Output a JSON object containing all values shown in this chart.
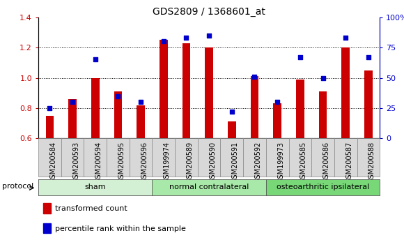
{
  "title": "GDS2809 / 1368601_at",
  "samples": [
    "GSM200584",
    "GSM200593",
    "GSM200594",
    "GSM200595",
    "GSM200596",
    "GSM199974",
    "GSM200589",
    "GSM200590",
    "GSM200591",
    "GSM200592",
    "GSM199973",
    "GSM200585",
    "GSM200586",
    "GSM200587",
    "GSM200588"
  ],
  "red_values": [
    0.75,
    0.86,
    1.0,
    0.91,
    0.82,
    1.25,
    1.23,
    1.2,
    0.71,
    1.01,
    0.83,
    0.99,
    0.91,
    1.2,
    1.05
  ],
  "blue_values_pct": [
    25,
    30,
    65,
    35,
    30,
    80,
    83,
    85,
    22,
    51,
    30,
    67,
    50,
    83,
    67
  ],
  "groups": [
    {
      "label": "sham",
      "start": 0,
      "end": 5,
      "color": "#d4f0d4"
    },
    {
      "label": "normal contralateral",
      "start": 5,
      "end": 10,
      "color": "#a8e8a8"
    },
    {
      "label": "osteoarthritic ipsilateral",
      "start": 10,
      "end": 15,
      "color": "#78d878"
    }
  ],
  "ylim_left": [
    0.6,
    1.4
  ],
  "ylim_right": [
    0,
    100
  ],
  "yticks_left": [
    0.6,
    0.8,
    1.0,
    1.2,
    1.4
  ],
  "yticks_right": [
    0,
    25,
    50,
    75,
    100
  ],
  "ytick_labels_right": [
    "0",
    "25",
    "50",
    "75",
    "100%"
  ],
  "bar_color": "#cc0000",
  "dot_color": "#0000cc",
  "bar_bottom": 0.6,
  "protocol_label": "protocol",
  "legend_items": [
    {
      "label": "transformed count",
      "color": "#cc0000"
    },
    {
      "label": "percentile rank within the sample",
      "color": "#0000cc"
    }
  ],
  "title_fontsize": 10,
  "tick_fontsize": 8,
  "label_fontsize": 8
}
